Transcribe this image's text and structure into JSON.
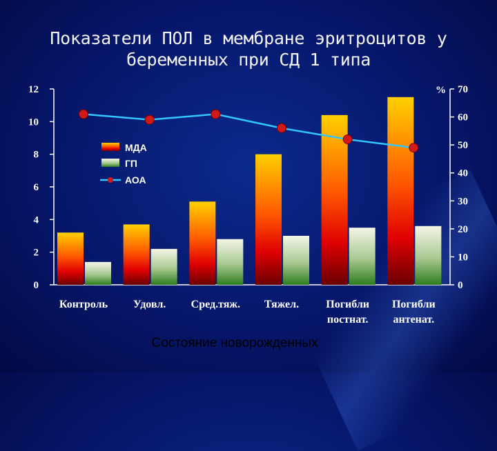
{
  "title_line1": "Показатели ПОЛ в мембране эритроцитов у",
  "title_line2": "беременных при СД 1 типа",
  "chart_data": {
    "type": "bar",
    "categories": [
      [
        "Контроль"
      ],
      [
        "Удовл."
      ],
      [
        "Сред.тяж."
      ],
      [
        "Тяжел."
      ],
      [
        "Погибли",
        "постнат."
      ],
      [
        "Погибли",
        "антенат."
      ]
    ],
    "series": [
      {
        "name": "МДА",
        "type": "bar",
        "axis": "left",
        "values": [
          3.2,
          3.7,
          5.1,
          8.0,
          10.4,
          11.5
        ]
      },
      {
        "name": "ГП",
        "type": "bar",
        "axis": "left",
        "values": [
          1.4,
          2.2,
          2.8,
          3.0,
          3.5,
          3.6
        ]
      },
      {
        "name": "АОА",
        "type": "line",
        "axis": "right",
        "values": [
          61,
          59,
          61,
          56,
          52,
          49
        ]
      }
    ],
    "y_left": {
      "min": 0,
      "max": 12,
      "ticks": [
        0,
        2,
        4,
        6,
        8,
        10,
        12
      ]
    },
    "y_right": {
      "min": 0,
      "max": 70,
      "ticks": [
        0,
        10,
        20,
        30,
        40,
        50,
        60,
        70
      ],
      "unit": "%"
    },
    "xlabel": "Состояние новорожденных",
    "legend_position": "upper-left-inside",
    "colors": {
      "mda_top": "#ffd000",
      "mda_mid": "#ff4a00",
      "mda_bottom": "#7a0000",
      "gp_top": "#f4f6e8",
      "gp_bottom": "#2e7d1e",
      "aoa_line": "#33c7ff",
      "aoa_marker": "#d11a1a"
    }
  }
}
